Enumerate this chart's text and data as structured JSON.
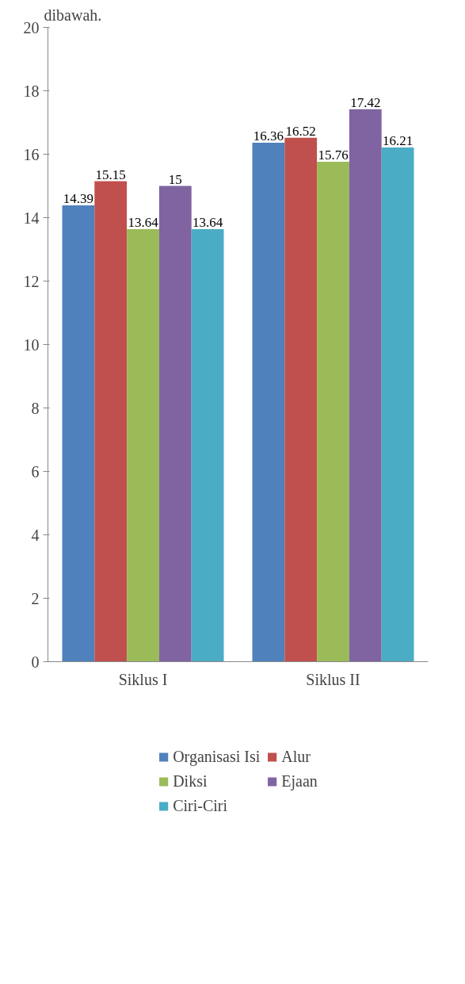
{
  "chart_data": {
    "type": "bar",
    "annotations": [
      "dibawah."
    ],
    "categories": [
      "Siklus I",
      "Siklus II"
    ],
    "series": [
      {
        "name": "Organisasi Isi",
        "color": "#4f81bd",
        "values": [
          14.39,
          16.36
        ]
      },
      {
        "name": "Alur",
        "color": "#c0504d",
        "values": [
          15.15,
          16.52
        ]
      },
      {
        "name": "Diksi",
        "color": "#9bbb59",
        "values": [
          13.64,
          15.76
        ]
      },
      {
        "name": "Ejaan",
        "color": "#8064a2",
        "values": [
          15,
          17.42
        ]
      },
      {
        "name": "Ciri-Ciri",
        "color": "#4bacc6",
        "values": [
          13.64,
          16.21
        ]
      }
    ],
    "ylim": [
      0,
      20
    ],
    "yticks": [
      0,
      2,
      4,
      6,
      8,
      10,
      12,
      14,
      16,
      18,
      20
    ],
    "data_labels": true,
    "grid": false,
    "legend": "bottom"
  }
}
